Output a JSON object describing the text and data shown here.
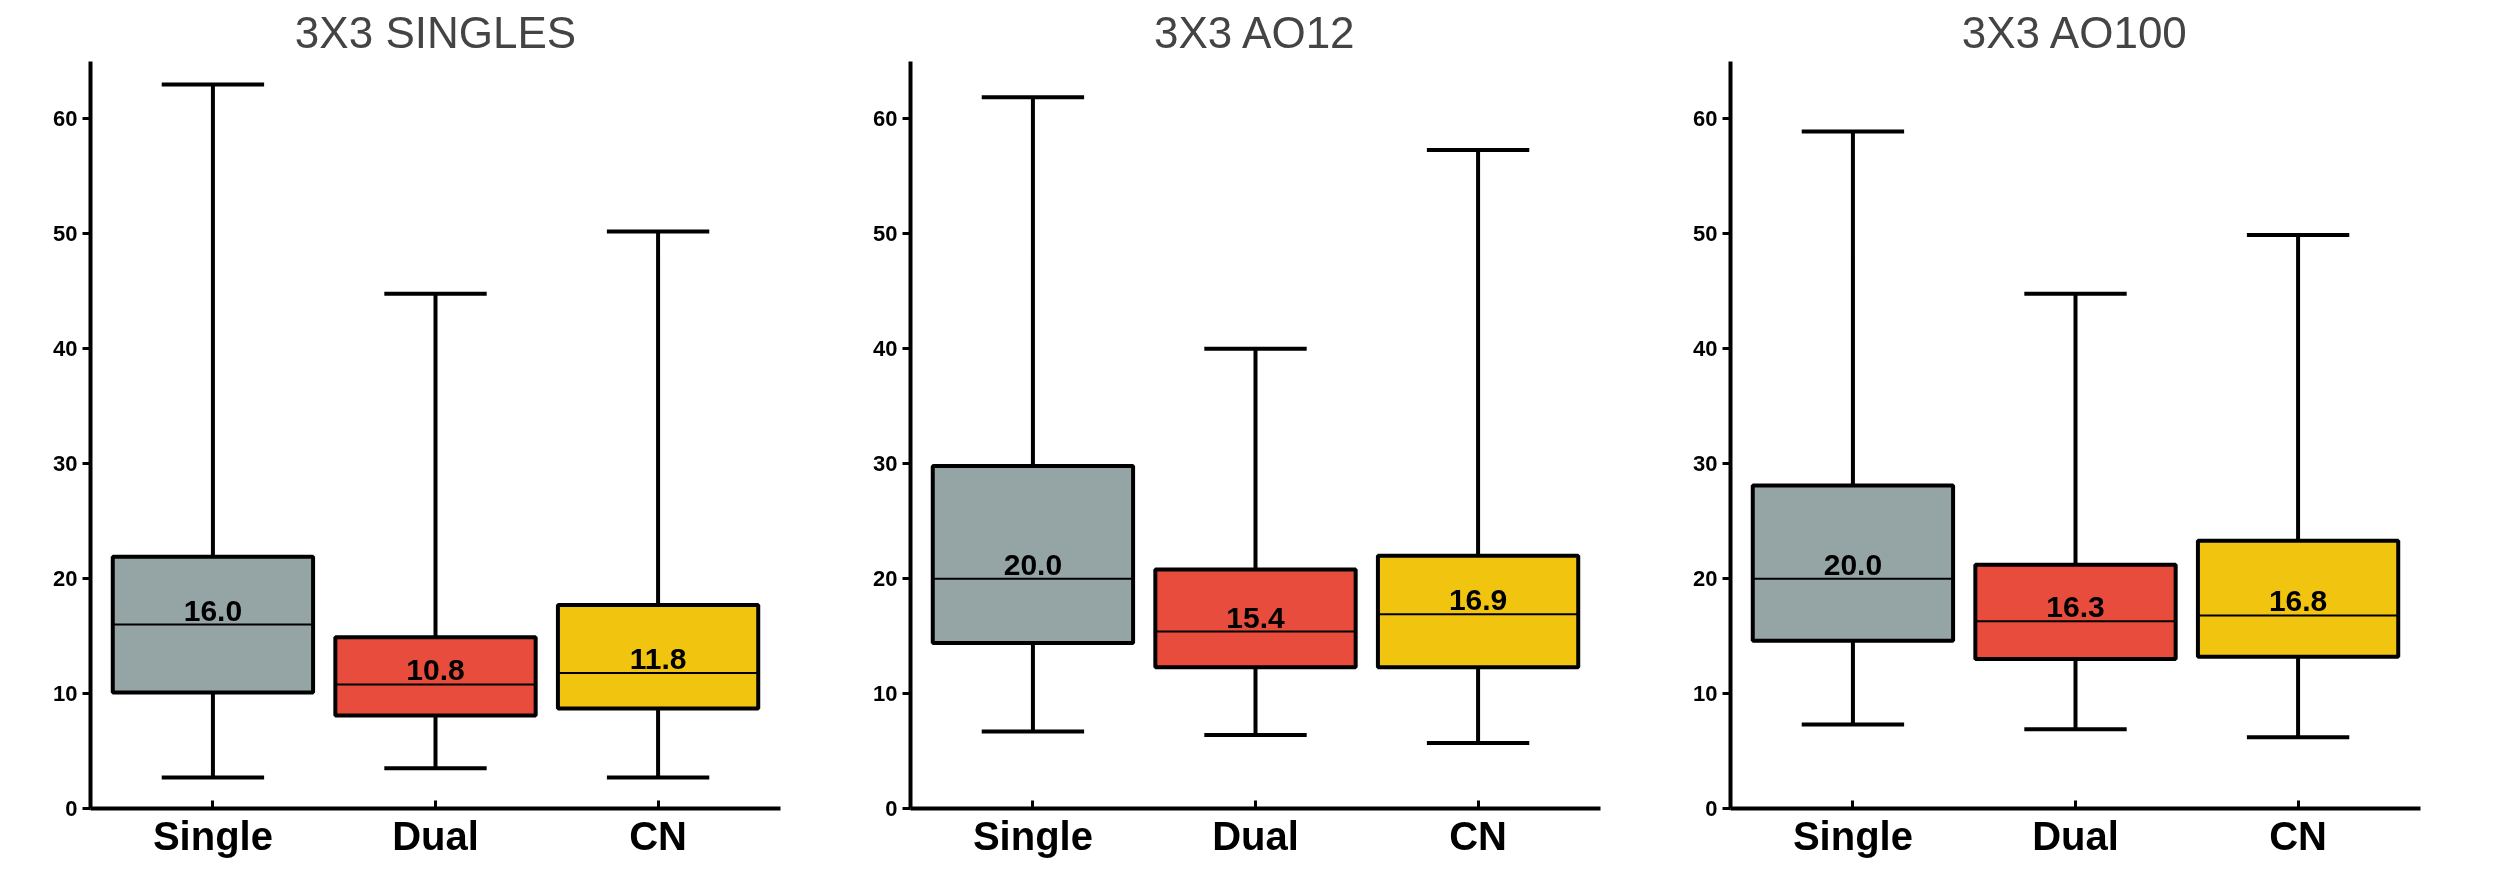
{
  "chart_data": [
    {
      "type": "box",
      "title": "3X3 SINGLES",
      "categories": [
        "Single",
        "Dual",
        "CN"
      ],
      "colors": [
        "#95a5a6",
        "#e74c3c",
        "#f1c40f"
      ],
      "ylim": [
        0,
        65
      ],
      "yticks": [
        0,
        10,
        20,
        30,
        40,
        50,
        60
      ],
      "grid": false,
      "boxes": [
        {
          "low": 2.7,
          "q1": 10.1,
          "median": 16.0,
          "q3": 21.9,
          "high": 63
        },
        {
          "low": 3.5,
          "q1": 8.1,
          "median": 10.8,
          "q3": 14.9,
          "high": 44.8
        },
        {
          "low": 2.7,
          "q1": 8.7,
          "median": 11.8,
          "q3": 17.7,
          "high": 50.2
        }
      ],
      "value_labels": [
        "16.0",
        "10.8",
        "11.8"
      ]
    },
    {
      "type": "box",
      "title": "3X3 AO12",
      "categories": [
        "Single",
        "Dual",
        "CN"
      ],
      "colors": [
        "#95a5a6",
        "#e74c3c",
        "#f1c40f"
      ],
      "ylim": [
        0,
        65
      ],
      "yticks": [
        0,
        10,
        20,
        30,
        40,
        50,
        60
      ],
      "grid": false,
      "boxes": [
        {
          "low": 6.7,
          "q1": 14.4,
          "median": 20.0,
          "q3": 29.8,
          "high": 61.9
        },
        {
          "low": 6.4,
          "q1": 12.3,
          "median": 15.4,
          "q3": 20.8,
          "high": 40.0
        },
        {
          "low": 5.7,
          "q1": 12.3,
          "median": 16.9,
          "q3": 22.0,
          "high": 57.3
        }
      ],
      "value_labels": [
        "20.0",
        "15.4",
        "16.9"
      ]
    },
    {
      "type": "box",
      "title": "3X3 AO100",
      "categories": [
        "Single",
        "Dual",
        "CN"
      ],
      "colors": [
        "#95a5a6",
        "#e74c3c",
        "#f1c40f"
      ],
      "ylim": [
        0,
        65
      ],
      "yticks": [
        0,
        10,
        20,
        30,
        40,
        50,
        60
      ],
      "grid": false,
      "boxes": [
        {
          "low": 7.3,
          "q1": 14.6,
          "median": 20.0,
          "q3": 28.1,
          "high": 58.9
        },
        {
          "low": 6.9,
          "q1": 13.0,
          "median": 16.3,
          "q3": 21.2,
          "high": 44.8
        },
        {
          "low": 6.2,
          "q1": 13.2,
          "median": 16.8,
          "q3": 23.3,
          "high": 49.9
        }
      ],
      "value_labels": [
        "20.0",
        "16.3",
        "16.8"
      ]
    }
  ]
}
